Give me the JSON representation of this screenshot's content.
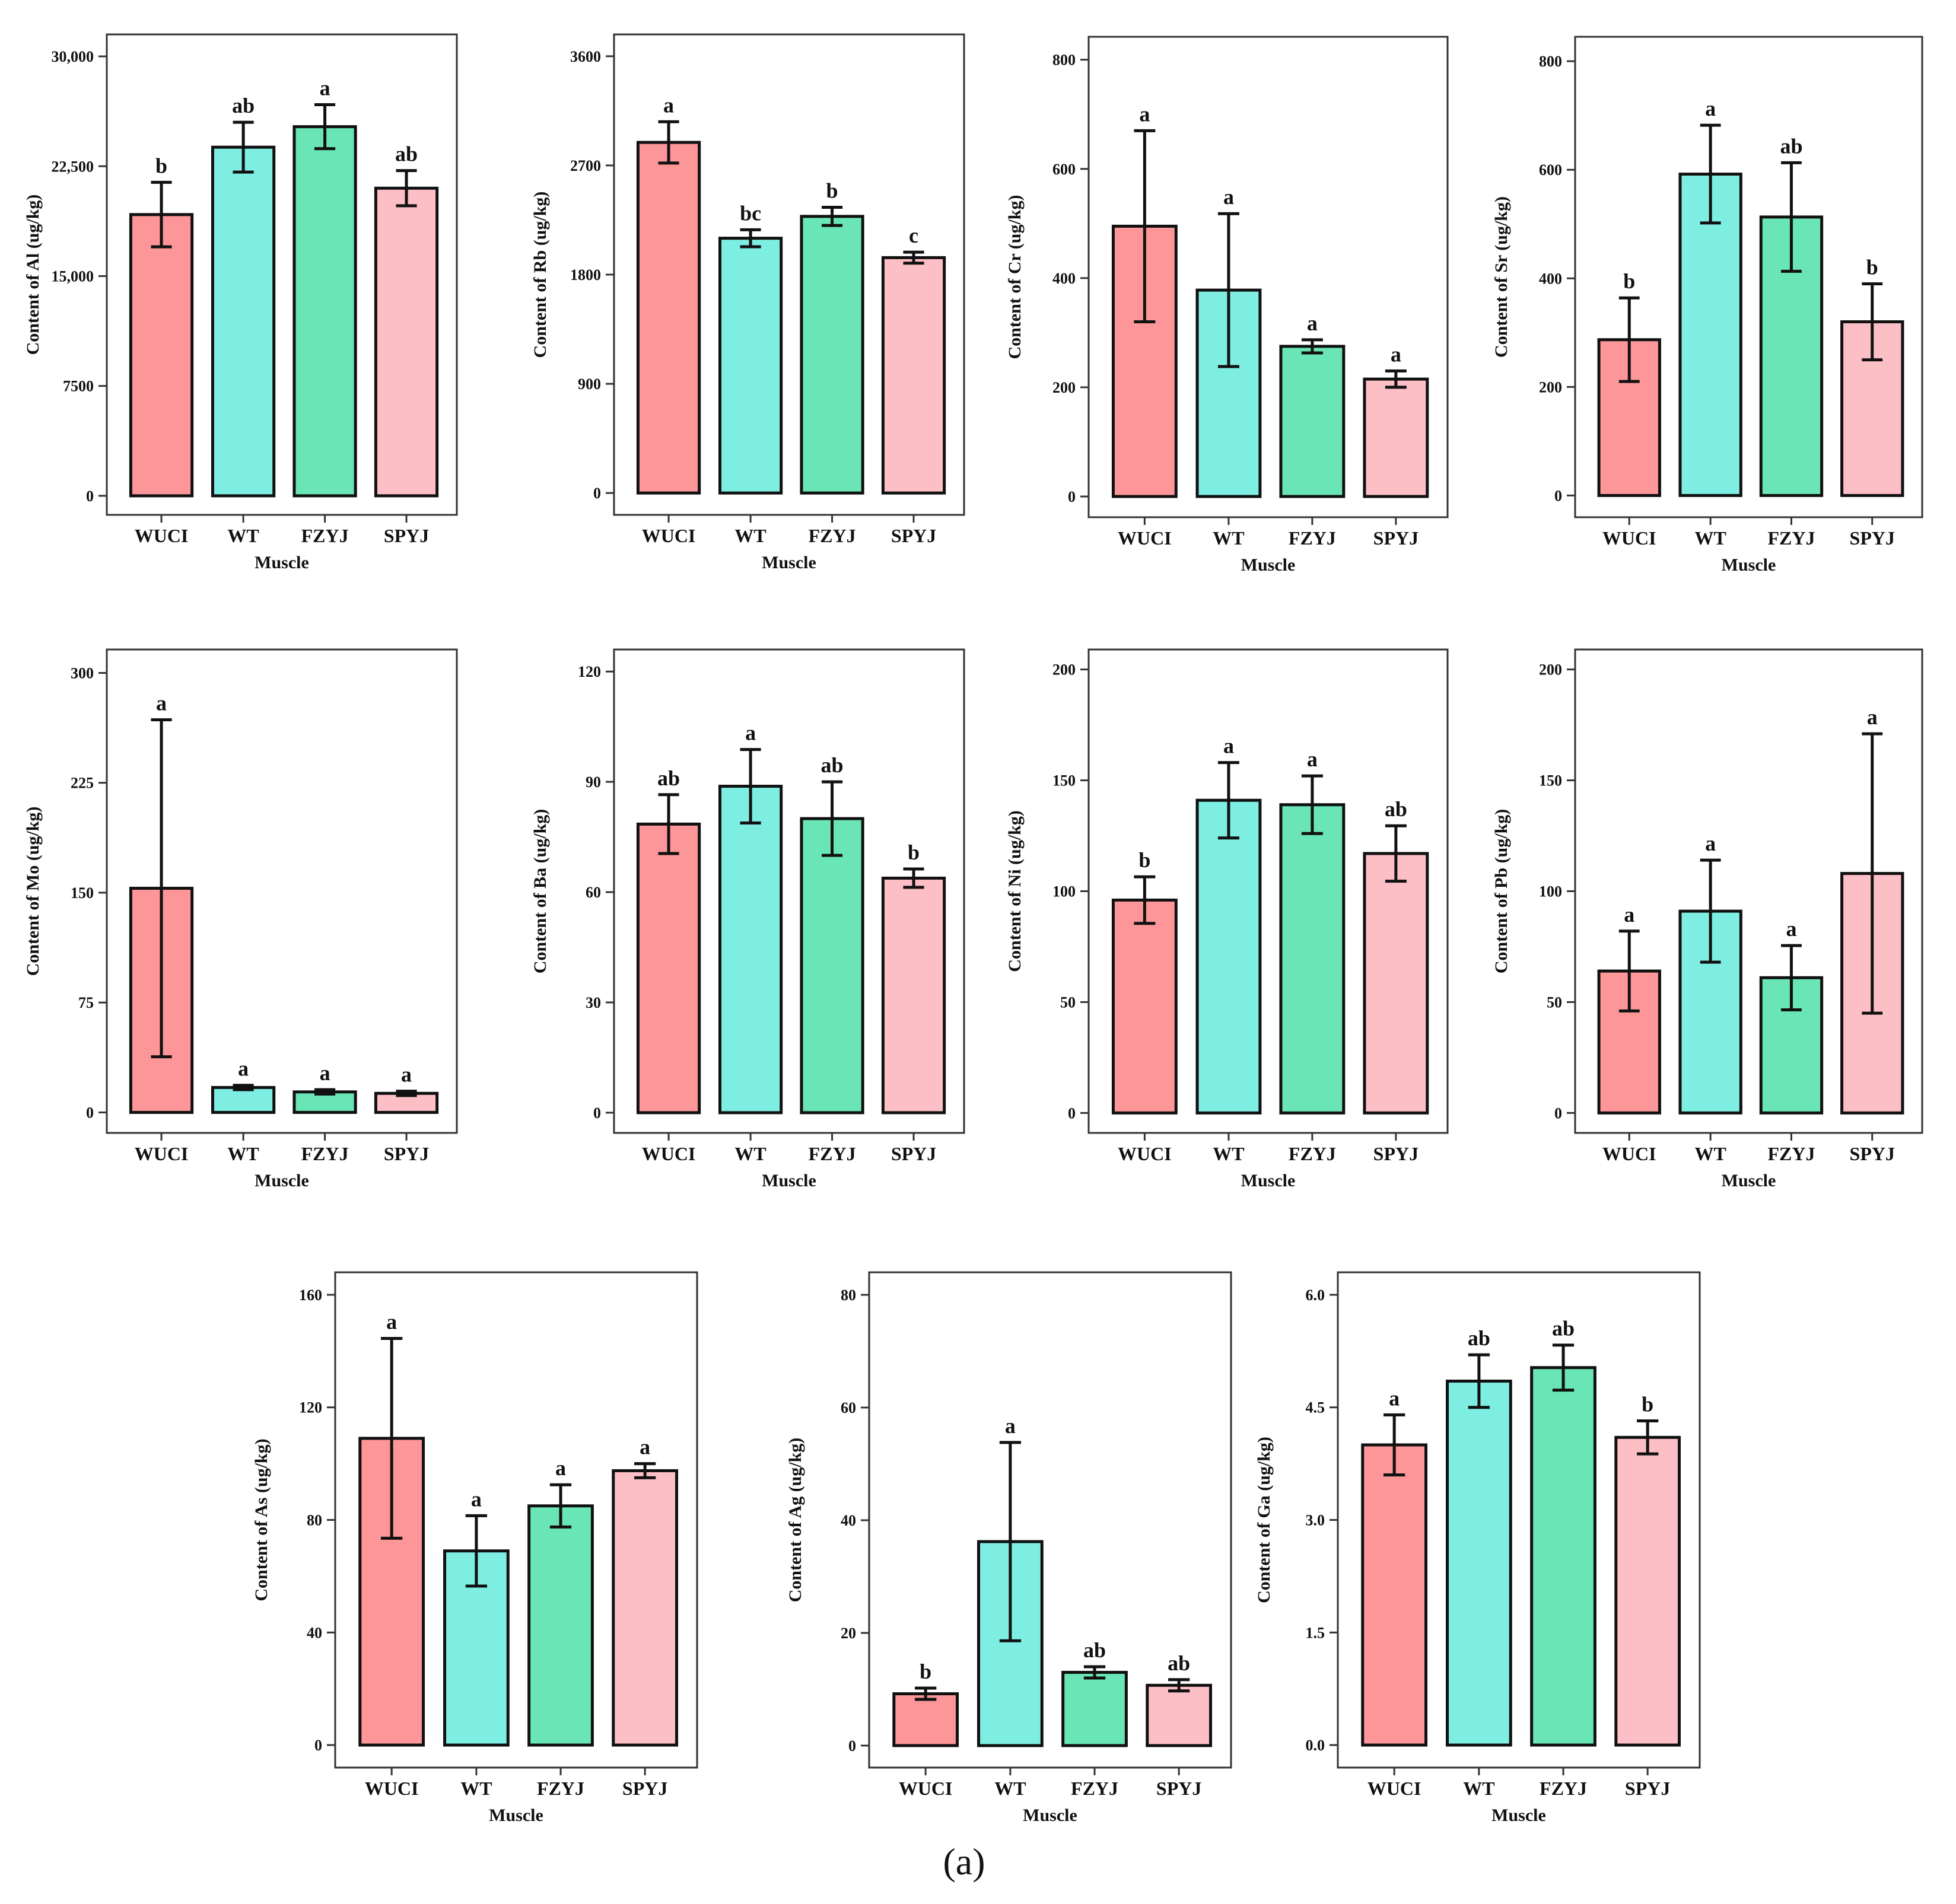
{
  "figure": {
    "panel_label": "(a)"
  },
  "colors": {
    "WUCI": "#fc9698",
    "WT": "#7eeee2",
    "FZYJ": "#6ae5b6",
    "SPYJ": "#fdbfc6",
    "stroke": "#111111"
  },
  "chart_data": [
    {
      "type": "bar",
      "id": "Al",
      "xlabel": "Muscle",
      "ylabel": "Content of Al  (ug/kg)",
      "categories": [
        "WUCI",
        "WT",
        "FZYJ",
        "SPYJ"
      ],
      "values": [
        19200,
        23800,
        25200,
        21000
      ],
      "errors": [
        2200,
        1700,
        1500,
        1200
      ],
      "significance": [
        "b",
        "ab",
        "a",
        "ab"
      ],
      "ylim": [
        -1300,
        31500
      ],
      "yticks": [
        0,
        7500,
        15000,
        22500,
        30000
      ],
      "ytick_labels": [
        "0",
        "7500",
        "15,000",
        "22,500",
        "30,000"
      ]
    },
    {
      "type": "bar",
      "id": "Rb",
      "xlabel": "Muscle",
      "ylabel": "Content  of  Rb  (ug/kg)",
      "categories": [
        "WUCI",
        "WT",
        "FZYJ",
        "SPYJ"
      ],
      "values": [
        2890,
        2100,
        2280,
        1940
      ],
      "errors": [
        170,
        70,
        75,
        45
      ],
      "significance": [
        "a",
        "bc",
        "b",
        "c"
      ],
      "ylim": [
        -180,
        3780
      ],
      "yticks": [
        0,
        900,
        1800,
        2700,
        3600
      ],
      "ytick_labels": [
        "0",
        "900",
        "1800",
        "2700",
        "3600"
      ]
    },
    {
      "type": "bar",
      "id": "Cr",
      "xlabel": "Muscle",
      "ylabel": "Content of  Cr  (ug/kg)",
      "categories": [
        "WUCI",
        "WT",
        "FZYJ",
        "SPYJ"
      ],
      "values": [
        495,
        378,
        275,
        215
      ],
      "errors": [
        175,
        140,
        12,
        15
      ],
      "significance": [
        "a",
        "a",
        "a",
        "a"
      ],
      "ylim": [
        -38,
        842
      ],
      "yticks": [
        0,
        200,
        400,
        600,
        800
      ],
      "ytick_labels": [
        "0",
        "200",
        "400",
        "600",
        "800"
      ]
    },
    {
      "type": "bar",
      "id": "Sr",
      "xlabel": "Muscle",
      "ylabel": "Content  of  Sr  (ug/kg)",
      "categories": [
        "WUCI",
        "WT",
        "FZYJ",
        "SPYJ"
      ],
      "values": [
        287,
        592,
        513,
        320
      ],
      "errors": [
        77,
        90,
        100,
        70
      ],
      "significance": [
        "b",
        "a",
        "ab",
        "b"
      ],
      "ylim": [
        -40,
        845
      ],
      "yticks": [
        0,
        200,
        400,
        600,
        800
      ],
      "ytick_labels": [
        "0",
        "200",
        "400",
        "600",
        "800"
      ]
    },
    {
      "type": "bar",
      "id": "Mo",
      "xlabel": "Muscle",
      "ylabel": "Content of Mo  (ug/kg)",
      "categories": [
        "WUCI",
        "WT",
        "FZYJ",
        "SPYJ"
      ],
      "values": [
        153,
        17,
        14,
        13
      ],
      "errors": [
        115,
        1.5,
        1.5,
        1.5
      ],
      "significance": [
        "a",
        "a",
        "a",
        "a"
      ],
      "ylim": [
        -14,
        316
      ],
      "yticks": [
        0,
        75,
        150,
        225,
        300
      ],
      "ytick_labels": [
        "0",
        "75",
        "150",
        "225",
        "300"
      ]
    },
    {
      "type": "bar",
      "id": "Ba",
      "xlabel": "Muscle",
      "ylabel": "Content  of  Ba  (ug/kg)",
      "categories": [
        "WUCI",
        "WT",
        "FZYJ",
        "SPYJ"
      ],
      "values": [
        78.5,
        88.8,
        80.0,
        63.8
      ],
      "errors": [
        8,
        10,
        10,
        2.5
      ],
      "significance": [
        "ab",
        "a",
        "ab",
        "b"
      ],
      "ylim": [
        -5.5,
        126
      ],
      "yticks": [
        0,
        30,
        60,
        90,
        120
      ],
      "ytick_labels": [
        "0",
        "30",
        "60",
        "90",
        "120"
      ]
    },
    {
      "type": "bar",
      "id": "Ni",
      "xlabel": "Muscle",
      "ylabel": "Content  of  Ni  (ug/kg)",
      "categories": [
        "WUCI",
        "WT",
        "FZYJ",
        "SPYJ"
      ],
      "values": [
        96,
        141,
        139,
        117
      ],
      "errors": [
        10.5,
        17,
        13,
        12.5
      ],
      "significance": [
        "b",
        "a",
        "a",
        "ab"
      ],
      "ylim": [
        -9,
        209
      ],
      "yticks": [
        0,
        50,
        100,
        150,
        200
      ],
      "ytick_labels": [
        "0",
        "50",
        "100",
        "150",
        "200"
      ]
    },
    {
      "type": "bar",
      "id": "Pb",
      "xlabel": "Muscle",
      "ylabel": "Content  of  Pb  (ug/kg)",
      "categories": [
        "WUCI",
        "WT",
        "FZYJ",
        "SPYJ"
      ],
      "values": [
        64,
        91,
        61,
        108
      ],
      "errors": [
        18,
        23,
        14.5,
        63
      ],
      "significance": [
        "a",
        "a",
        "a",
        "a"
      ],
      "ylim": [
        -9,
        209
      ],
      "yticks": [
        0,
        50,
        100,
        150,
        200
      ],
      "ytick_labels": [
        "0",
        "50",
        "100",
        "150",
        "200"
      ]
    },
    {
      "type": "bar",
      "id": "As",
      "xlabel": "Muscle",
      "ylabel": "Content  of  As  (ug/kg)",
      "categories": [
        "WUCI",
        "WT",
        "FZYJ",
        "SPYJ"
      ],
      "values": [
        109,
        69,
        85,
        97.5
      ],
      "errors": [
        35.5,
        12.5,
        7.5,
        2.5
      ],
      "significance": [
        "a",
        "a",
        "a",
        "a"
      ],
      "ylim": [
        -8,
        168
      ],
      "yticks": [
        0,
        40,
        80,
        120,
        160
      ],
      "ytick_labels": [
        "0",
        "40",
        "80",
        "120",
        "160"
      ]
    },
    {
      "type": "bar",
      "id": "Ag",
      "xlabel": "Muscle",
      "ylabel": "Content  of  Ag  (ug/kg)",
      "categories": [
        "WUCI",
        "WT",
        "FZYJ",
        "SPYJ"
      ],
      "values": [
        9.2,
        36.2,
        13.0,
        10.7
      ],
      "errors": [
        1.0,
        17.6,
        1.0,
        1.0
      ],
      "significance": [
        "b",
        "a",
        "ab",
        "ab"
      ],
      "ylim": [
        -3.9,
        84
      ],
      "yticks": [
        0,
        20,
        40,
        60,
        80
      ],
      "ytick_labels": [
        "0",
        "20",
        "40",
        "60",
        "80"
      ]
    },
    {
      "type": "bar",
      "id": "Ga",
      "xlabel": "Muscle",
      "ylabel": "Content  of  Ga  (ug/kg)",
      "categories": [
        "WUCI",
        "WT",
        "FZYJ",
        "SPYJ"
      ],
      "values": [
        4.0,
        4.85,
        5.03,
        4.1
      ],
      "errors": [
        0.4,
        0.35,
        0.3,
        0.22
      ],
      "significance": [
        "a",
        "ab",
        "ab",
        "b"
      ],
      "ylim": [
        -0.3,
        6.3
      ],
      "yticks": [
        0,
        1.5,
        3.0,
        4.5,
        6.0
      ],
      "ytick_labels": [
        "0.0",
        "1.5",
        "3.0",
        "4.5",
        "6.0"
      ]
    }
  ]
}
